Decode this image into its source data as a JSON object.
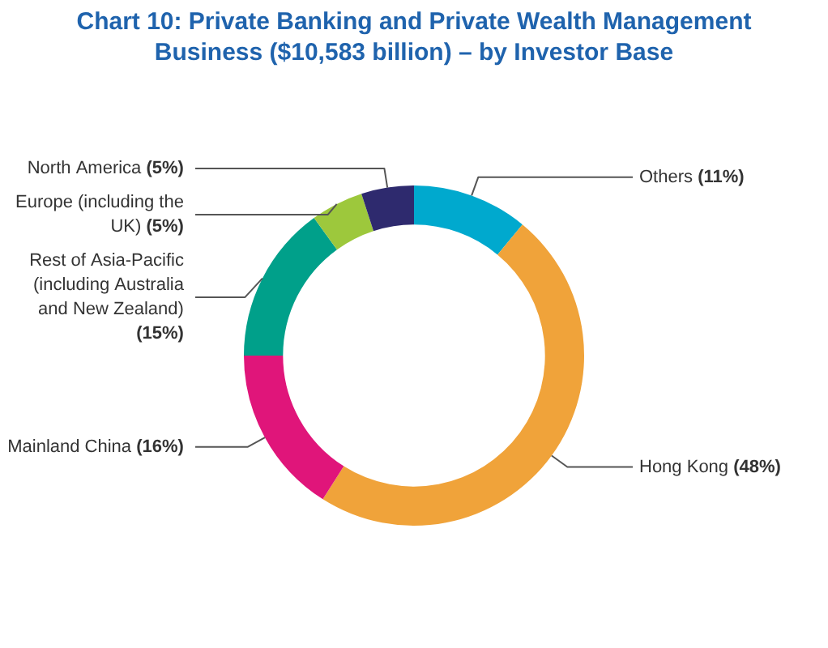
{
  "chart_data": {
    "type": "donut",
    "title": "Chart 10: Private Banking and Private Wealth Management Business ($10,583 billion) – by Investor Base",
    "categories": [
      "Others",
      "Hong Kong",
      "Mainland China",
      "Rest of Asia-Pacific (including Australia and New Zealand)",
      "Europe (including the UK)",
      "North America"
    ],
    "values": [
      11,
      48,
      16,
      15,
      5,
      5
    ],
    "value_labels": [
      "(11%)",
      "(48%)",
      "(16%)",
      "(15%)",
      "(5%)",
      "(5%)"
    ],
    "colors": [
      "#00a9ce",
      "#f0a33a",
      "#e0157a",
      "#00a08a",
      "#9dc83c",
      "#2e2a6e"
    ],
    "legend": false
  }
}
